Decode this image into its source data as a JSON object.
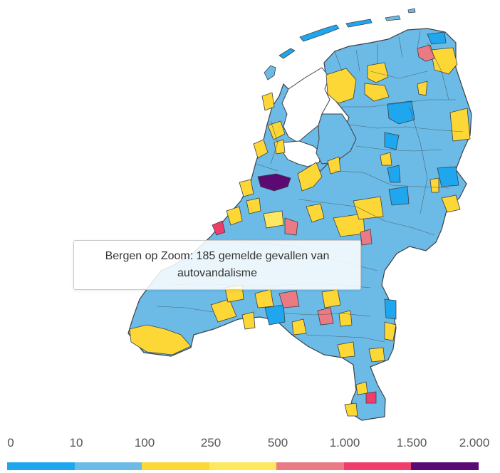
{
  "tooltip": {
    "text": "Bergen op Zoom: 185 gemelde gevallen van autovandalisme"
  },
  "legend": {
    "ticks": [
      "0",
      "10",
      "100",
      "250",
      "500",
      "1.000",
      "1.500",
      "2.000"
    ],
    "colors": [
      "#1ea7ef",
      "#6bbbe6",
      "#fcd736",
      "#fde85f",
      "#ea7a83",
      "#f03d6c",
      "#5c0a73"
    ]
  },
  "map": {
    "palette": {
      "water": "#ffffff",
      "border": "#3c4048",
      "default_fill": "#6bbbe6"
    },
    "categories_shown": [
      "0-10",
      "10-100",
      "100-250",
      "250-500",
      "500-1.000",
      "1.000-1.500",
      "1.500-2.000"
    ]
  }
}
